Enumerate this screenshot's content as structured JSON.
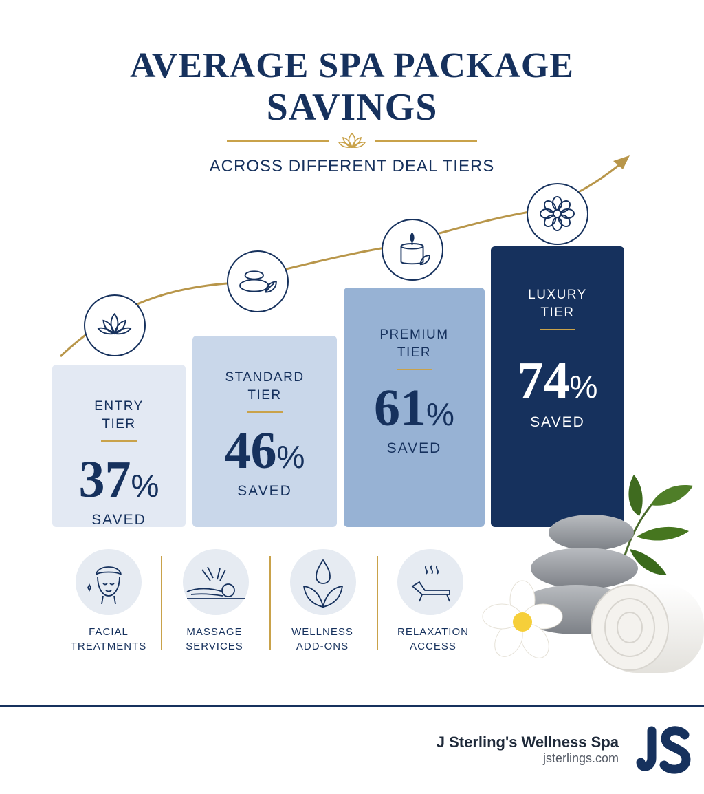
{
  "title_line1": "AVERAGE SPA PACKAGE",
  "title_line2": "SAVINGS",
  "subtitle": "ACROSS DIFFERENT DEAL TIERS",
  "chart_data": {
    "type": "bar",
    "title": "AVERAGE SPA PACKAGE SAVINGS",
    "subtitle": "ACROSS DIFFERENT DEAL TIERS",
    "categories": [
      "ENTRY TIER",
      "STANDARD TIER",
      "PREMIUM TIER",
      "LUXURY TIER"
    ],
    "values": [
      37,
      46,
      61,
      74
    ],
    "unit": "%",
    "value_label": "SAVED",
    "colors": [
      "#e3e9f3",
      "#c9d7ea",
      "#97b2d4",
      "#16315d"
    ],
    "grid": false
  },
  "tiers": [
    {
      "line1": "ENTRY",
      "line2": "TIER",
      "num": "37",
      "sym": "%",
      "saved": "SAVED",
      "icon": "lotus-icon"
    },
    {
      "line1": "STANDARD",
      "line2": "TIER",
      "num": "46",
      "sym": "%",
      "saved": "SAVED",
      "icon": "stones-icon"
    },
    {
      "line1": "PREMIUM",
      "line2": "TIER",
      "num": "61",
      "sym": "%",
      "saved": "SAVED",
      "icon": "candle-icon"
    },
    {
      "line1": "LUXURY",
      "line2": "TIER",
      "num": "74",
      "sym": "%",
      "saved": "SAVED",
      "icon": "flower-icon"
    }
  ],
  "features": [
    {
      "line1": "FACIAL",
      "line2": "TREATMENTS",
      "icon": "facial-icon"
    },
    {
      "line1": "MASSAGE",
      "line2": "SERVICES",
      "icon": "massage-icon"
    },
    {
      "line1": "WELLNESS",
      "line2": "ADD-ONS",
      "icon": "droplet-leaves-icon"
    },
    {
      "line1": "RELAXATION",
      "line2": "ACCESS",
      "icon": "lounger-icon"
    }
  ],
  "brand": {
    "name": "J Sterling's Wellness Spa",
    "url": "jsterlings.com",
    "logo_text": "JS"
  },
  "colors": {
    "navy": "#16315d",
    "gold": "#c9a24a"
  }
}
